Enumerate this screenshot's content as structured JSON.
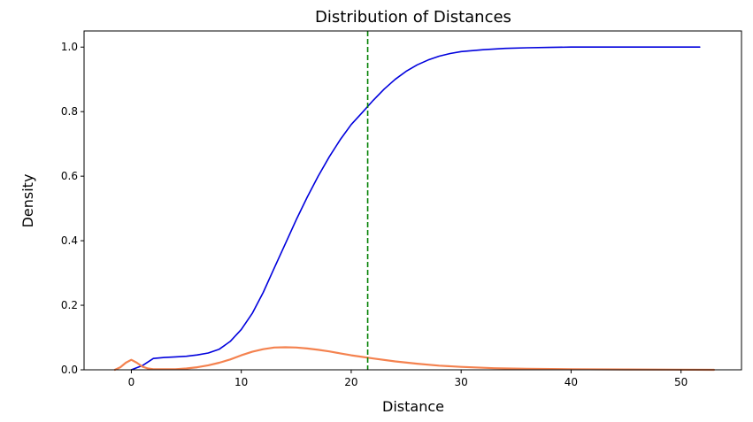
{
  "chart_data": {
    "type": "line",
    "title": "Distribution of Distances",
    "xlabel": "Distance",
    "ylabel": "Density",
    "xlim": [
      -4.3,
      55.5
    ],
    "ylim": [
      0,
      1.05
    ],
    "xticks": [
      0,
      10,
      20,
      30,
      40,
      50
    ],
    "yticks": [
      0.0,
      0.2,
      0.4,
      0.6,
      0.8,
      1.0
    ],
    "xtick_labels": [
      "0",
      "10",
      "20",
      "30",
      "40",
      "50"
    ],
    "ytick_labels": [
      "0.0",
      "0.2",
      "0.4",
      "0.6",
      "0.8",
      "1.0"
    ],
    "grid": false,
    "legend": null,
    "vline": {
      "x": 21.5,
      "color": "#008000",
      "style": "dashed"
    },
    "series": [
      {
        "color": "#0000dd",
        "x": [
          0,
          1,
          2,
          3,
          4,
          5,
          6,
          7,
          8,
          9,
          10,
          11,
          12,
          13,
          14,
          15,
          16,
          17,
          18,
          19,
          20,
          21,
          22,
          23,
          24,
          25,
          26,
          27,
          28,
          29,
          30,
          32,
          34,
          36,
          38,
          40,
          45,
          51.7
        ],
        "y": [
          0.0,
          0.013,
          0.035,
          0.038,
          0.04,
          0.042,
          0.046,
          0.052,
          0.064,
          0.088,
          0.125,
          0.175,
          0.24,
          0.315,
          0.39,
          0.465,
          0.535,
          0.6,
          0.66,
          0.713,
          0.76,
          0.797,
          0.835,
          0.87,
          0.9,
          0.925,
          0.945,
          0.96,
          0.972,
          0.98,
          0.986,
          0.992,
          0.996,
          0.998,
          0.999,
          1.0,
          1.0,
          1.0
        ]
      },
      {
        "color": "#f4824f",
        "x": [
          -1.5,
          -1,
          -0.5,
          0,
          0.5,
          1,
          1.5,
          2,
          3,
          4,
          5,
          6,
          7,
          8,
          9,
          10,
          11,
          12,
          13,
          14,
          15,
          16,
          17,
          18,
          19,
          20,
          21,
          22,
          24,
          26,
          28,
          30,
          33,
          36,
          40,
          45,
          53
        ],
        "y": [
          0.0,
          0.008,
          0.022,
          0.031,
          0.022,
          0.01,
          0.004,
          0.002,
          0.002,
          0.002,
          0.004,
          0.008,
          0.014,
          0.022,
          0.032,
          0.045,
          0.056,
          0.064,
          0.069,
          0.07,
          0.069,
          0.066,
          0.062,
          0.057,
          0.051,
          0.045,
          0.04,
          0.035,
          0.026,
          0.019,
          0.013,
          0.009,
          0.005,
          0.003,
          0.002,
          0.001,
          0.0
        ]
      }
    ]
  }
}
